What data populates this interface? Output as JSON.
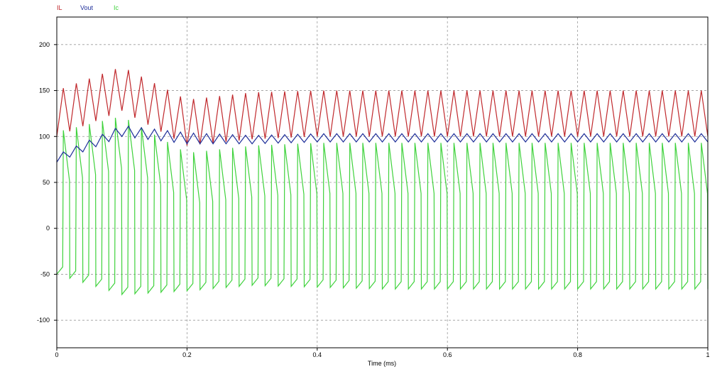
{
  "chart_data": {
    "type": "line",
    "title": "",
    "xlabel": "Time (ms)",
    "ylabel": "",
    "xlim": [
      0,
      1
    ],
    "ylim": [
      -130,
      230
    ],
    "x_ticks": [
      "0",
      "0.2",
      "0.4",
      "0.6",
      "0.8",
      "1"
    ],
    "y_ticks": [
      "200",
      "150",
      "100",
      "50",
      "0",
      "-50",
      "-100"
    ],
    "grid": true,
    "legend_placement": "top-left",
    "switching_period_ms": 0.02,
    "series": [
      {
        "name": "IL",
        "color": "#c0282c",
        "shape": "triangle",
        "x": [
          0,
          0.1,
          0.2,
          0.3,
          0.4,
          0.5,
          0.6,
          0.7,
          0.8,
          0.9,
          1.0
        ],
        "max": [
          150,
          176,
          140,
          148,
          150,
          150,
          150,
          150,
          150,
          150,
          150
        ],
        "min": [
          100,
          128,
          90,
          97,
          100,
          100,
          100,
          100,
          100,
          100,
          100
        ]
      },
      {
        "name": "Vout",
        "color": "#1f2f9a",
        "shape": "triangle",
        "x": [
          0,
          0.1,
          0.2,
          0.3,
          0.4,
          0.5,
          0.6,
          0.7,
          0.8,
          0.9,
          1.0
        ],
        "max": [
          80,
          112,
          104,
          101,
          103,
          103,
          103,
          103,
          103,
          103,
          103
        ],
        "min": [
          72,
          100,
          92,
          92,
          94,
          94,
          94,
          94,
          94,
          94,
          94
        ]
      },
      {
        "name": "Ic",
        "color": "#3fd23c",
        "shape": "sawtooth",
        "x": [
          0,
          0.1,
          0.2,
          0.3,
          0.4,
          0.5,
          0.6,
          0.7,
          0.8,
          0.9,
          1.0
        ],
        "max": [
          105,
          122,
          82,
          90,
          93,
          93,
          93,
          93,
          93,
          93,
          93
        ],
        "min": [
          -50,
          -72,
          -68,
          -62,
          -64,
          -66,
          -66,
          -66,
          -66,
          -66,
          -66
        ]
      }
    ]
  }
}
